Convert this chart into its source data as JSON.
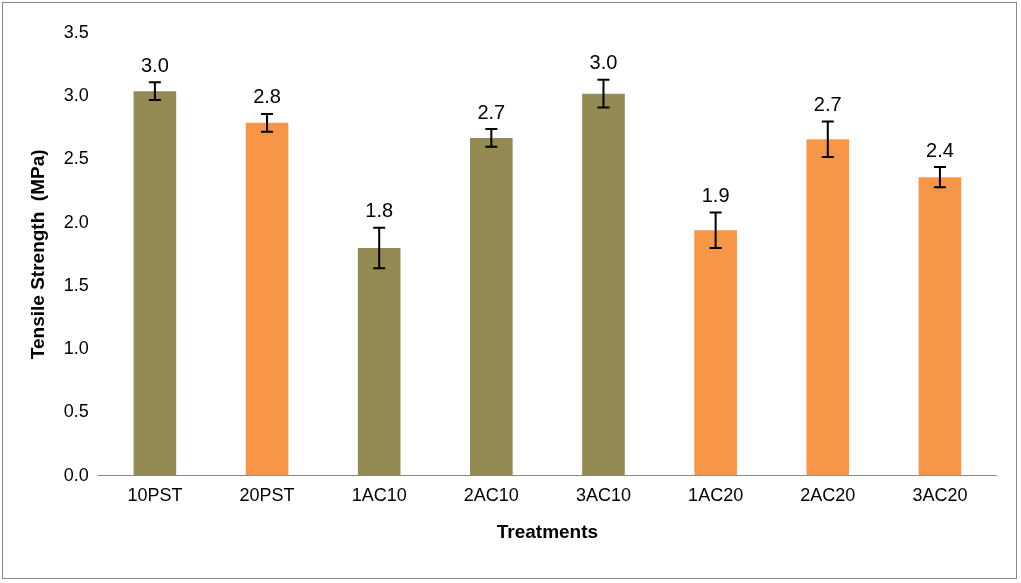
{
  "chart_data": {
    "type": "bar",
    "xlabel": "Treatments",
    "ylabel": "Tensile Strength  (MPa)",
    "categories": [
      "10PST",
      "20PST",
      "1AC10",
      "2AC10",
      "3AC10",
      "1AC20",
      "2AC20",
      "3AC20"
    ],
    "values": [
      3.04,
      2.79,
      1.8,
      2.67,
      3.02,
      1.94,
      2.66,
      2.36
    ],
    "errors": [
      0.07,
      0.07,
      0.16,
      0.07,
      0.11,
      0.14,
      0.14,
      0.08
    ],
    "value_labels": [
      "3.0",
      "2.8",
      "1.8",
      "2.7",
      "3.0",
      "1.9",
      "2.7",
      "2.4"
    ],
    "colors": [
      "#948a54",
      "#f79646",
      "#948a54",
      "#948a54",
      "#948a54",
      "#f79646",
      "#f79646",
      "#f79646"
    ],
    "ylim": [
      0,
      3.5
    ],
    "yticks": [
      {
        "value": 0,
        "label": "0.0"
      },
      0.5,
      {
        "value": 1,
        "label": "1.0"
      },
      1.5,
      {
        "value": 2,
        "label": "2.0"
      },
      2.5,
      {
        "value": 3,
        "label": "3.0"
      },
      3.5
    ],
    "grid": false,
    "legend": false
  }
}
